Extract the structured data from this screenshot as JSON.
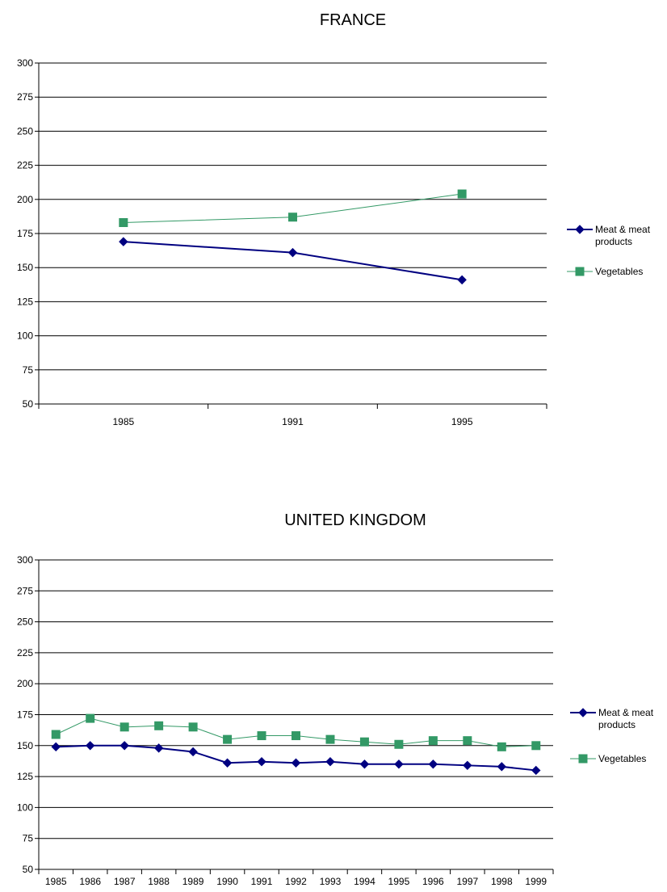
{
  "chart_data": [
    {
      "type": "line",
      "title": "FRANCE",
      "xlabel": "",
      "ylabel": "",
      "categories": [
        "1985",
        "1991",
        "1995"
      ],
      "ylim": [
        50,
        300
      ],
      "yticks": [
        50,
        75,
        100,
        125,
        150,
        175,
        200,
        225,
        250,
        275,
        300
      ],
      "grid": true,
      "legend": "right",
      "series": [
        {
          "name": "Meat & meat products",
          "legend_lines": [
            "Meat & meat",
            "products"
          ],
          "color": "#000080",
          "marker": "diamond",
          "values": [
            169,
            161,
            141
          ]
        },
        {
          "name": "Vegetables",
          "legend_lines": [
            "Vegetables"
          ],
          "color": "#339966",
          "marker": "square",
          "values": [
            183,
            187,
            204
          ]
        }
      ]
    },
    {
      "type": "line",
      "title": "UNITED KINGDOM",
      "xlabel": "",
      "ylabel": "",
      "categories": [
        "1985",
        "1986",
        "1987",
        "1988",
        "1989",
        "1990",
        "1991",
        "1992",
        "1993",
        "1994",
        "1995",
        "1996",
        "1997",
        "1998",
        "1999"
      ],
      "ylim": [
        50,
        300
      ],
      "yticks": [
        50,
        75,
        100,
        125,
        150,
        175,
        200,
        225,
        250,
        275,
        300
      ],
      "grid": true,
      "legend": "right",
      "series": [
        {
          "name": "Meat & meat products",
          "legend_lines": [
            "Meat & meat",
            "products"
          ],
          "color": "#000080",
          "marker": "diamond",
          "values": [
            149,
            150,
            150,
            148,
            145,
            136,
            137,
            136,
            137,
            135,
            135,
            135,
            134,
            133,
            130
          ]
        },
        {
          "name": "Vegetables",
          "legend_lines": [
            "Vegetables"
          ],
          "color": "#339966",
          "marker": "square",
          "values": [
            159,
            172,
            165,
            166,
            165,
            155,
            158,
            158,
            155,
            153,
            151,
            154,
            154,
            149,
            150
          ]
        }
      ]
    }
  ]
}
